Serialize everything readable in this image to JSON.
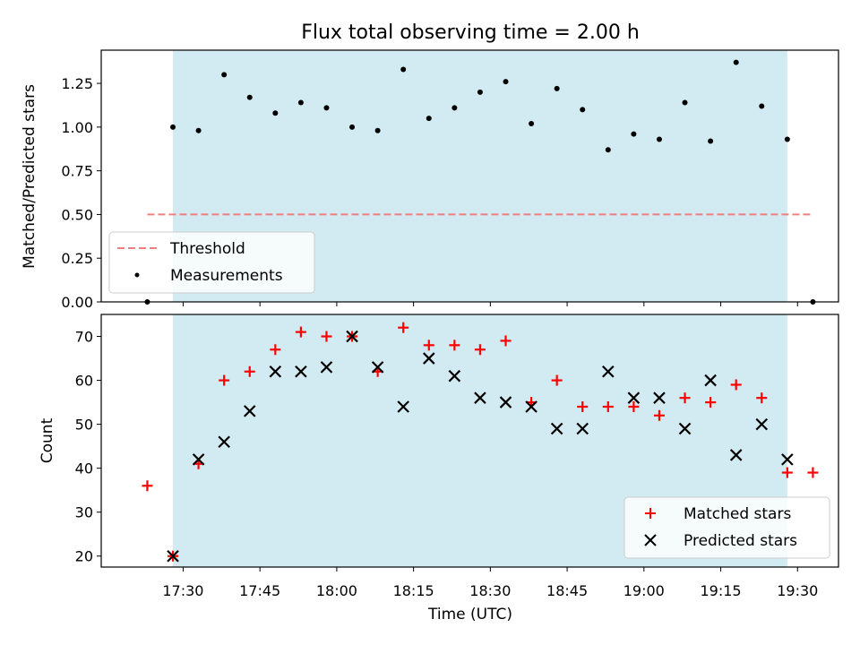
{
  "chart_data": [
    {
      "type": "scatter",
      "title": "Flux total observing time = 2.00 h",
      "xlabel": "",
      "ylabel": "Matched/Predicted stars",
      "ylim": [
        0,
        1.44
      ],
      "yticks": [
        "0.00",
        "0.25",
        "0.50",
        "0.75",
        "1.00",
        "1.25"
      ],
      "xlim": [
        "17:14",
        "19:38"
      ],
      "xticks": [
        "17:30",
        "17:45",
        "18:00",
        "18:15",
        "18:30",
        "18:45",
        "19:00",
        "19:15",
        "19:30"
      ],
      "observing_window": [
        "17:28",
        "19:28"
      ],
      "window_color": "#add8e6",
      "threshold": {
        "name": "Threshold",
        "value": 0.5,
        "x_range": [
          "17:23",
          "19:33"
        ],
        "color": "#f08080",
        "style": "dashed"
      },
      "series": [
        {
          "name": "Measurements",
          "marker": "dot",
          "color": "#000000",
          "x": [
            "17:23",
            "17:28",
            "17:33",
            "17:38",
            "17:43",
            "17:48",
            "17:53",
            "17:58",
            "18:03",
            "18:08",
            "18:13",
            "18:18",
            "18:23",
            "18:28",
            "18:33",
            "18:38",
            "18:43",
            "18:48",
            "18:53",
            "18:58",
            "19:03",
            "19:08",
            "19:13",
            "19:18",
            "19:23",
            "19:28",
            "19:33"
          ],
          "y": [
            0.0,
            1.0,
            0.98,
            1.3,
            1.17,
            1.08,
            1.14,
            1.11,
            1.0,
            0.98,
            1.33,
            1.05,
            1.11,
            1.2,
            1.26,
            1.02,
            1.22,
            1.1,
            0.87,
            0.96,
            0.93,
            1.14,
            0.92,
            1.37,
            1.12,
            0.93,
            0.0
          ]
        }
      ],
      "legend": "lower-left"
    },
    {
      "type": "scatter",
      "title": "",
      "xlabel": "Time (UTC)",
      "ylabel": "Count",
      "ylim": [
        17.5,
        75
      ],
      "yticks": [
        "20",
        "30",
        "40",
        "50",
        "60",
        "70"
      ],
      "xlim": [
        "17:14",
        "19:38"
      ],
      "xticks": [
        "17:30",
        "17:45",
        "18:00",
        "18:15",
        "18:30",
        "18:45",
        "19:00",
        "19:15",
        "19:30"
      ],
      "observing_window": [
        "17:28",
        "19:28"
      ],
      "window_color": "#add8e6",
      "series": [
        {
          "name": "Matched stars",
          "marker": "plus",
          "color": "#ff0000",
          "x": [
            "17:23",
            "17:28",
            "17:33",
            "17:38",
            "17:43",
            "17:48",
            "17:53",
            "17:58",
            "18:03",
            "18:08",
            "18:13",
            "18:18",
            "18:23",
            "18:28",
            "18:33",
            "18:38",
            "18:43",
            "18:48",
            "18:53",
            "18:58",
            "19:03",
            "19:08",
            "19:13",
            "19:18",
            "19:23",
            "19:28",
            "19:33"
          ],
          "y": [
            36,
            20,
            41,
            60,
            62,
            67,
            71,
            70,
            70,
            62,
            72,
            68,
            68,
            67,
            69,
            55,
            60,
            54,
            54,
            54,
            52,
            56,
            55,
            59,
            56,
            39,
            39
          ]
        },
        {
          "name": "Predicted stars",
          "marker": "x",
          "color": "#000000",
          "x": [
            "17:28",
            "17:33",
            "17:38",
            "17:43",
            "17:48",
            "17:53",
            "17:58",
            "18:03",
            "18:08",
            "18:13",
            "18:18",
            "18:23",
            "18:28",
            "18:33",
            "18:38",
            "18:43",
            "18:48",
            "18:53",
            "18:58",
            "19:03",
            "19:08",
            "19:13",
            "19:18",
            "19:23",
            "19:28"
          ],
          "y": [
            20,
            42,
            46,
            53,
            62,
            62,
            63,
            70,
            63,
            54,
            65,
            61,
            56,
            55,
            54,
            49,
            49,
            62,
            56,
            56,
            49,
            60,
            43,
            50,
            42
          ]
        }
      ],
      "legend": "lower-right"
    }
  ]
}
